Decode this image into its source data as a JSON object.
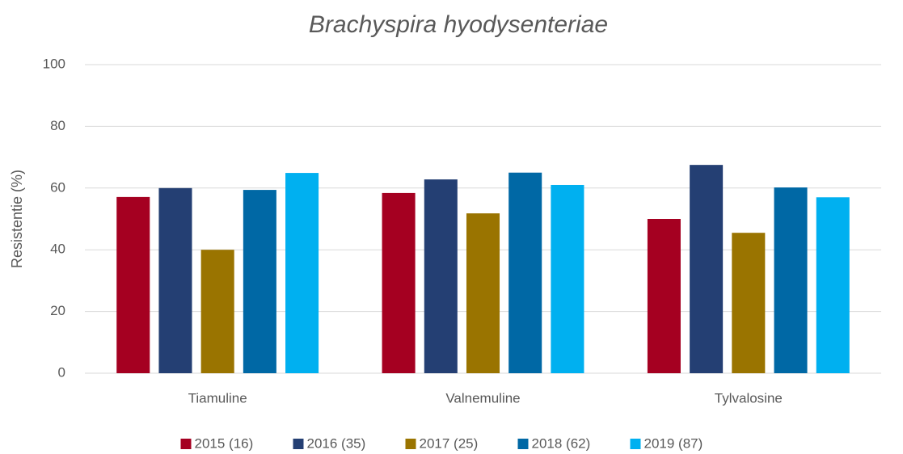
{
  "chart_data": {
    "type": "bar",
    "title": "Brachyspira hyodysenteriae",
    "ylabel": "Resistentie (%)",
    "categories": [
      "Tiamuline",
      "Valnemuline",
      "Tylvalosine"
    ],
    "series": [
      {
        "name": "2015 (16)",
        "color": "#a50021",
        "values": [
          57.1,
          58.4,
          50
        ]
      },
      {
        "name": "2016 (35)",
        "color": "#243f73",
        "values": [
          60,
          62.8,
          67.5
        ]
      },
      {
        "name": "2017 (25)",
        "color": "#9a7400",
        "values": [
          40,
          51.8,
          45.5
        ]
      },
      {
        "name": "2018 (62)",
        "color": "#0068a5",
        "values": [
          59.4,
          65,
          60.2
        ]
      },
      {
        "name": "2019 (87)",
        "color": "#00b0f0",
        "values": [
          64.9,
          61,
          57
        ]
      }
    ],
    "ylim": [
      0,
      100
    ],
    "yticks": [
      0,
      20,
      40,
      60,
      80,
      100
    ],
    "grid": true,
    "legend": "bottom"
  }
}
